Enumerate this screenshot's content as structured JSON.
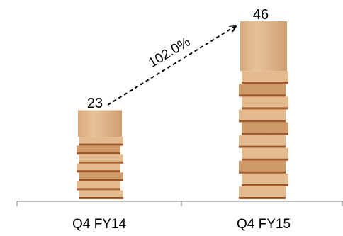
{
  "chart_data": {
    "type": "bar",
    "categories": [
      "Q4 FY14",
      "Q4 FY15"
    ],
    "values": [
      23,
      46
    ],
    "data_labels": [
      "23",
      "46"
    ],
    "title": "",
    "xlabel": "",
    "ylabel": "",
    "ylim": [
      0,
      50
    ],
    "grid": false,
    "legend": "none",
    "annotations": [
      {
        "text": "102.0%",
        "from": "Q4 FY14",
        "to": "Q4 FY15",
        "style": "dashed-arrow"
      }
    ],
    "bar_style": "stacked-plywood-boards",
    "colors": {
      "board_light": "#e3bb8f",
      "board_mid": "#cf9a69",
      "board_dark": "#a8582f",
      "axis": "#7a7a7a",
      "text": "#000000"
    }
  }
}
